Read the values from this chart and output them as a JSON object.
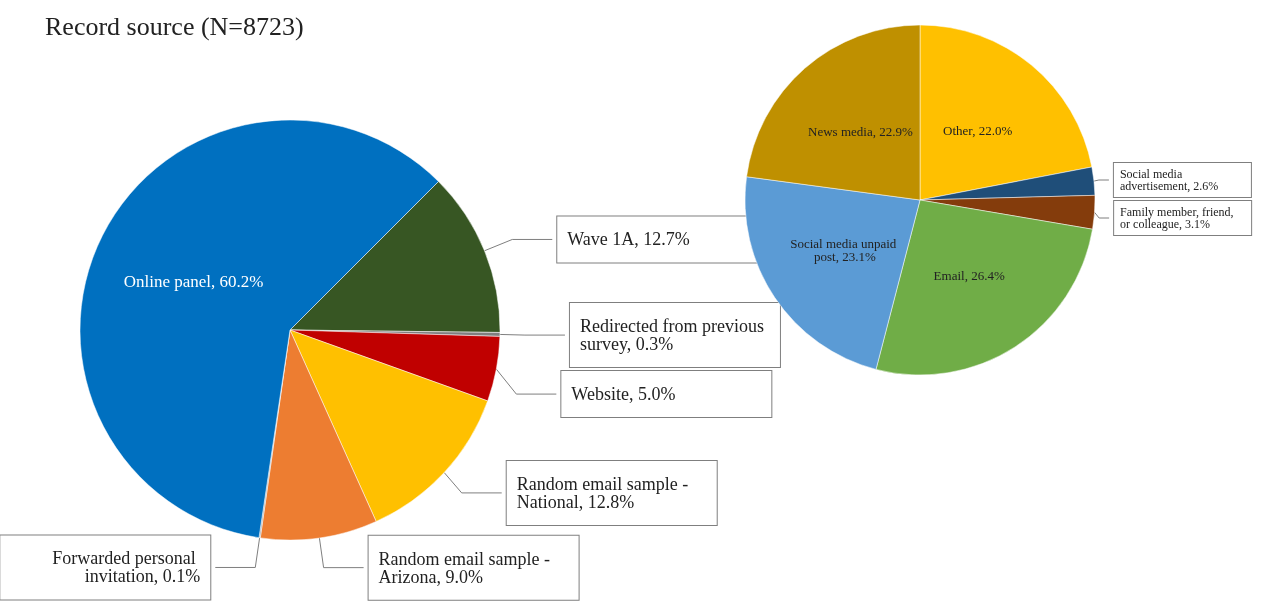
{
  "chart_data": [
    {
      "type": "pie",
      "title": "Record source (N=8723)",
      "categories": [
        "Wave 1A",
        "Redirected from previous survey",
        "Website",
        "Random email sample - National",
        "Random email sample - Arizona",
        "Forwarded personal invitation",
        "Online panel"
      ],
      "values": [
        12.7,
        0.3,
        5.0,
        12.8,
        9.0,
        0.1,
        60.2
      ],
      "value_labels": [
        "12.7%",
        "0.3%",
        "5.0%",
        "12.8%",
        "9.0%",
        "0.1%",
        "60.2%"
      ],
      "colors": [
        "#375623",
        "#7f7f7f",
        "#c00000",
        "#ffc000",
        "#ed7d31",
        "#a5a5a5",
        "#0070c0"
      ]
    },
    {
      "type": "pie",
      "categories": [
        "Other",
        "Social media advertisement",
        "Family member, friend, or colleague",
        "Email",
        "Social media unpaid post",
        "News media"
      ],
      "values": [
        22.0,
        2.6,
        3.1,
        26.4,
        23.1,
        22.9
      ],
      "value_labels": [
        "22.0%",
        "2.6%",
        "3.1%",
        "26.4%",
        "23.1%",
        "22.9%"
      ],
      "colors": [
        "#ffc000",
        "#1f4e79",
        "#843c0c",
        "#70ad47",
        "#5b9bd5",
        "#bf9000"
      ]
    }
  ]
}
